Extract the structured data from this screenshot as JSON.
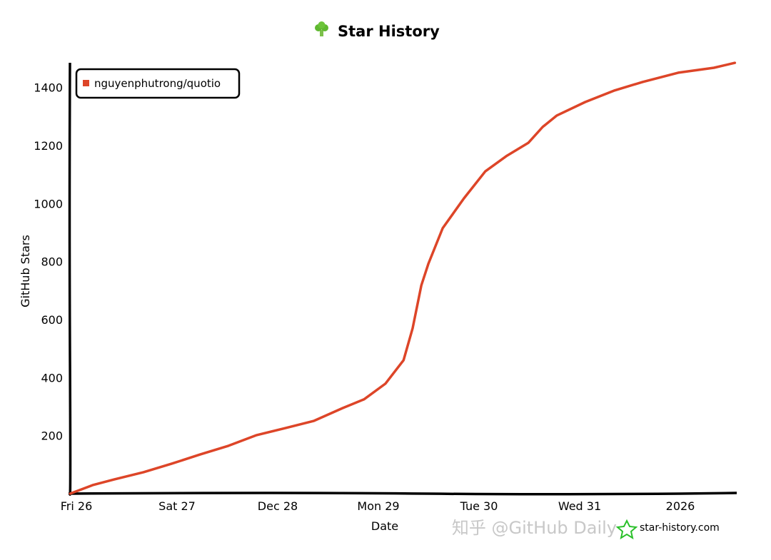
{
  "chart_data": {
    "type": "line",
    "title": "Star History",
    "title_icon": "broccoli-icon",
    "xlabel": "Date",
    "ylabel": "GitHub Stars",
    "x_ticks": [
      {
        "label": "Fri 26",
        "date": "2025-12-26T00:00"
      },
      {
        "label": "Sat 27",
        "date": "2025-12-27T00:00"
      },
      {
        "label": "Dec 28",
        "date": "2025-12-28T00:00"
      },
      {
        "label": "Mon 29",
        "date": "2025-12-29T00:00"
      },
      {
        "label": "Tue 30",
        "date": "2025-12-30T00:00"
      },
      {
        "label": "Wed 31",
        "date": "2025-12-31T00:00"
      },
      {
        "label": "2026",
        "date": "2026-01-01T00:00"
      }
    ],
    "y_ticks": [
      200,
      400,
      600,
      800,
      1000,
      1200,
      1400
    ],
    "ylim": [
      0,
      1480
    ],
    "xlim": [
      "2025-12-25T22:30",
      "2026-01-01T13:00"
    ],
    "grid": false,
    "legend_position": "top-left",
    "series": [
      {
        "name": "nguyenphutrong/quotio",
        "color": "#dd4528",
        "points": [
          [
            "2025-12-25T22:30",
            0
          ],
          [
            "2025-12-26T04:00",
            30
          ],
          [
            "2025-12-26T09:00",
            49
          ],
          [
            "2025-12-26T16:00",
            74
          ],
          [
            "2025-12-26T22:40",
            103
          ],
          [
            "2025-12-27T05:30",
            135
          ],
          [
            "2025-12-27T12:15",
            165
          ],
          [
            "2025-12-27T19:00",
            202
          ],
          [
            "2025-12-28T01:50",
            226
          ],
          [
            "2025-12-28T08:40",
            251
          ],
          [
            "2025-12-28T15:30",
            295
          ],
          [
            "2025-12-28T20:35",
            325
          ],
          [
            "2025-12-29T01:40",
            379
          ],
          [
            "2025-12-29T06:00",
            460
          ],
          [
            "2025-12-29T08:10",
            570
          ],
          [
            "2025-12-29T10:15",
            718
          ],
          [
            "2025-12-29T11:55",
            792
          ],
          [
            "2025-12-29T15:20",
            915
          ],
          [
            "2025-12-29T20:25",
            1018
          ],
          [
            "2025-12-30T01:30",
            1111
          ],
          [
            "2025-12-30T06:40",
            1165
          ],
          [
            "2025-12-30T11:45",
            1209
          ],
          [
            "2025-12-30T15:10",
            1264
          ],
          [
            "2025-12-30T18:30",
            1303
          ],
          [
            "2025-12-31T01:20",
            1350
          ],
          [
            "2025-12-31T08:10",
            1389
          ],
          [
            "2025-12-31T15:00",
            1419
          ],
          [
            "2025-12-31T23:30",
            1451
          ],
          [
            "2026-01-01T08:00",
            1468
          ],
          [
            "2026-01-01T13:00",
            1485
          ]
        ]
      }
    ]
  },
  "branding": {
    "site": "star-history.com",
    "site_icon": "star-history-logo-icon",
    "watermark": "知乎 @GitHub Daily"
  }
}
